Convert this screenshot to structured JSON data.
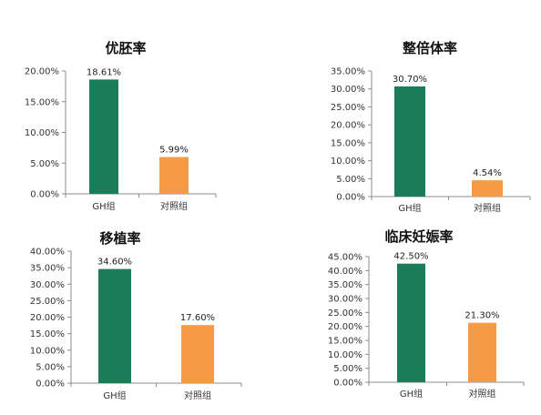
{
  "colors": {
    "gh": "#1b7d57",
    "control": "#f59b45"
  },
  "chart_data": [
    {
      "type": "bar",
      "title": "优胚率",
      "categories": [
        "GH组",
        "对照组"
      ],
      "values": [
        18.61,
        5.99
      ],
      "data_labels": [
        "18.61%",
        "5.99%"
      ],
      "ylim": [
        0,
        20
      ],
      "yticks": [
        "0.00%",
        "5.00%",
        "10.00%",
        "15.00%",
        "20.00%"
      ],
      "grid": false
    },
    {
      "type": "bar",
      "title": "整倍体率",
      "categories": [
        "GH组",
        "对照组"
      ],
      "values": [
        30.7,
        4.54
      ],
      "data_labels": [
        "30.70%",
        "4.54%"
      ],
      "ylim": [
        0,
        35
      ],
      "yticks": [
        "0.00%",
        "5.00%",
        "10.00%",
        "15.00%",
        "20.00%",
        "25.00%",
        "30.00%",
        "35.00%"
      ],
      "grid": false
    },
    {
      "type": "bar",
      "title": "移植率",
      "categories": [
        "GH组",
        "对照组"
      ],
      "values": [
        34.6,
        17.6
      ],
      "data_labels": [
        "34.60%",
        "17.60%"
      ],
      "ylim": [
        0,
        40
      ],
      "yticks": [
        "0.00%",
        "5.00%",
        "10.00%",
        "15.00%",
        "20.00%",
        "25.00%",
        "30.00%",
        "35.00%",
        "40.00%"
      ],
      "grid": false
    },
    {
      "type": "bar",
      "title": "临床妊娠率",
      "categories": [
        "GH组",
        "对照组"
      ],
      "values": [
        42.5,
        21.3
      ],
      "data_labels": [
        "42.50%",
        "21.30%"
      ],
      "ylim": [
        0,
        45
      ],
      "yticks": [
        "0.00%",
        "5.00%",
        "10.00%",
        "15.00%",
        "20.00%",
        "25.00%",
        "30.00%",
        "35.00%",
        "40.00%",
        "45.00%"
      ],
      "grid": false
    }
  ]
}
